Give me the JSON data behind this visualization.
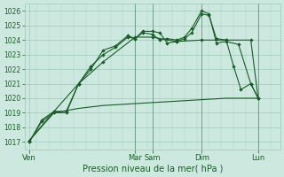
{
  "bg_color": "#cce8df",
  "grid_color": "#9fc8ba",
  "line_color": "#1a5c28",
  "tick_label_color": "#1a5c28",
  "xlabel": "Pression niveau de la mer( hPa )",
  "ylim": [
    1016.5,
    1026.5
  ],
  "yticks": [
    1017,
    1018,
    1019,
    1020,
    1021,
    1022,
    1023,
    1024,
    1025,
    1026
  ],
  "xlim": [
    -0.2,
    10.2
  ],
  "day_labels": [
    "Ven",
    "Mar",
    "Sam",
    "Dim",
    "Lun"
  ],
  "day_positions": [
    0.0,
    4.3,
    5.0,
    7.0,
    9.3
  ],
  "line1_dense": {
    "x": [
      0,
      0.5,
      1.0,
      1.5,
      2.0,
      2.5,
      3.0,
      3.5,
      4.0,
      4.3,
      4.6,
      5.0,
      5.3,
      5.6,
      6.0,
      6.3,
      6.6,
      7.0,
      7.3,
      7.6,
      8.0,
      8.3,
      8.6,
      9.0,
      9.3
    ],
    "y": [
      1017.0,
      1018.4,
      1019.0,
      1019.0,
      1021.0,
      1022.2,
      1023.0,
      1023.5,
      1024.2,
      1024.1,
      1024.6,
      1024.6,
      1024.5,
      1023.8,
      1023.9,
      1024.1,
      1024.5,
      1025.8,
      1025.7,
      1024.1,
      1024.0,
      1022.2,
      1020.6,
      1021.0,
      1020.0
    ],
    "has_markers": true
  },
  "line2_dense": {
    "x": [
      0,
      0.5,
      1.0,
      1.5,
      2.0,
      2.5,
      3.0,
      3.5,
      4.0,
      4.3,
      4.6,
      5.0,
      5.3,
      5.6,
      6.0,
      6.3,
      6.6,
      7.0,
      7.3,
      7.6,
      8.0,
      8.5,
      9.0,
      9.3
    ],
    "y": [
      1017.0,
      1018.5,
      1019.1,
      1019.1,
      1021.0,
      1022.0,
      1023.3,
      1023.6,
      1024.3,
      1024.1,
      1024.5,
      1024.4,
      1024.0,
      1024.1,
      1024.0,
      1024.2,
      1024.8,
      1026.0,
      1025.8,
      1023.8,
      1023.9,
      1023.7,
      1021.0,
      1020.0
    ],
    "has_markers": true
  },
  "line3_sparse": {
    "x": [
      0,
      1.0,
      2.0,
      3.0,
      4.3,
      5.0,
      6.0,
      7.0,
      8.0,
      9.0,
      9.3
    ],
    "y": [
      1017.1,
      1019.1,
      1021.0,
      1022.5,
      1024.2,
      1024.2,
      1023.9,
      1024.0,
      1024.0,
      1024.0,
      1020.0
    ],
    "has_markers": true
  },
  "line4_flat": {
    "x": [
      0,
      1.0,
      2.0,
      3.0,
      4.0,
      5.0,
      6.0,
      7.0,
      8.0,
      9.0,
      9.3
    ],
    "y": [
      1017.1,
      1019.0,
      1019.3,
      1019.5,
      1019.6,
      1019.7,
      1019.8,
      1019.9,
      1020.0,
      1020.0,
      1020.0
    ],
    "has_markers": false
  }
}
